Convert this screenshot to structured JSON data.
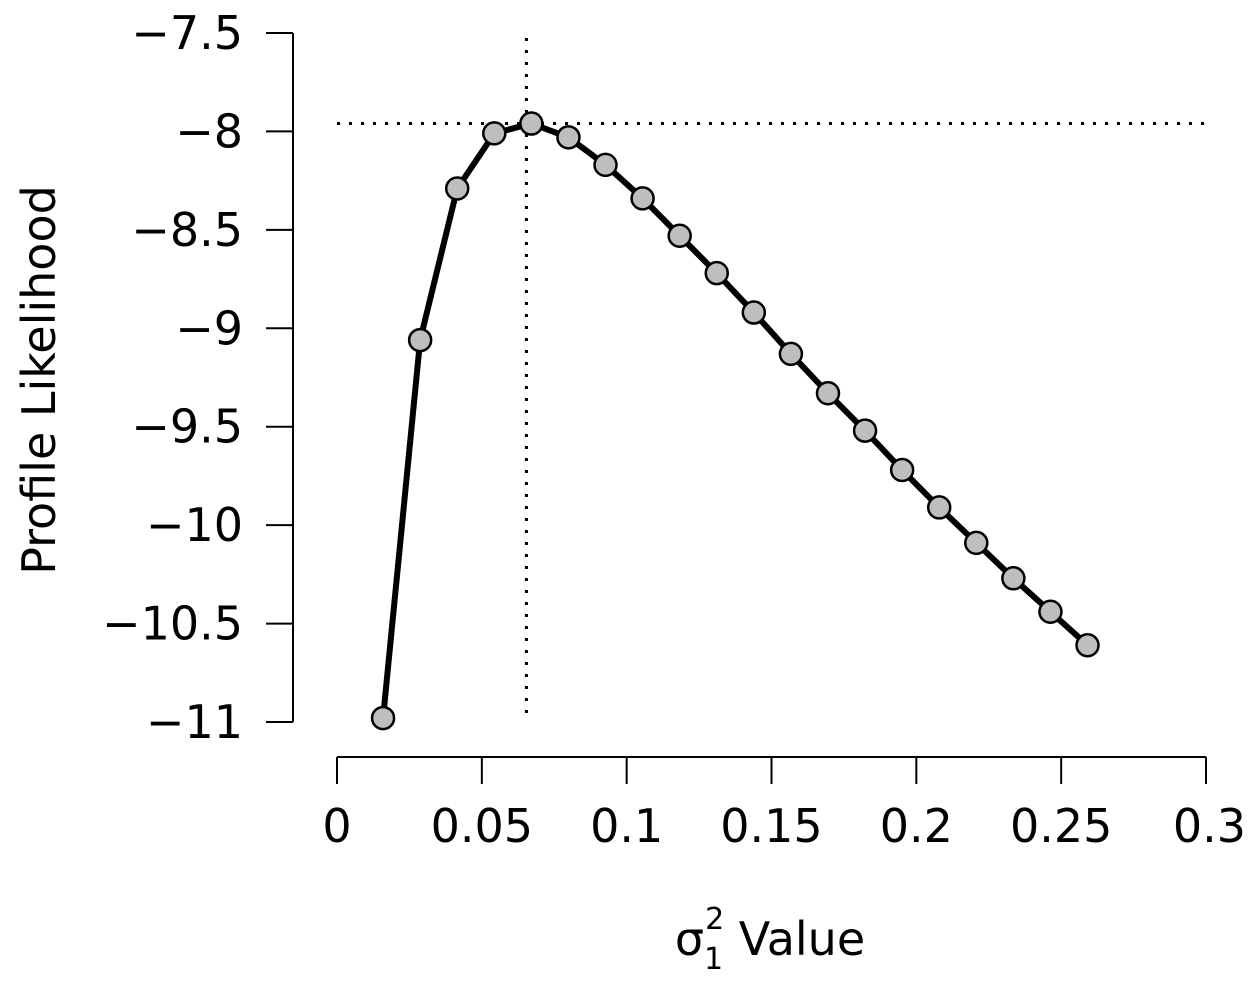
{
  "chart_data": {
    "type": "line",
    "xlabel": {
      "symbol": "σ",
      "subscript": "1",
      "superscript": "2",
      "text": " Value"
    },
    "ylabel": "Profile Likelihood",
    "xlim": [
      0,
      0.3
    ],
    "ylim": [
      -11,
      -7.5
    ],
    "xticks": [
      0,
      0.05,
      0.1,
      0.15,
      0.2,
      0.25,
      0.3
    ],
    "xtick_labels": [
      "0",
      "0.05",
      "0.1",
      "0.15",
      "0.2",
      "0.25",
      "0.3"
    ],
    "yticks": [
      -7.5,
      -8,
      -8.5,
      -9,
      -9.5,
      -10,
      -10.5,
      -11
    ],
    "ytick_labels": [
      "−7.5",
      "−8",
      "−8.5",
      "−9",
      "−9.5",
      "−10",
      "−10.5",
      "−11"
    ],
    "reference_lines": {
      "vertical_x": 0.0654,
      "horizontal_y": -7.96
    },
    "x": [
      0.0159,
      0.0287,
      0.0415,
      0.0543,
      0.0671,
      0.0799,
      0.0927,
      0.1055,
      0.1183,
      0.1311,
      0.1439,
      0.1567,
      0.1695,
      0.1823,
      0.1951,
      0.2079,
      0.2207,
      0.2335,
      0.2463,
      0.2591
    ],
    "y": [
      -10.98,
      -9.06,
      -8.29,
      -8.01,
      -7.96,
      -8.03,
      -8.17,
      -8.34,
      -8.53,
      -8.72,
      -8.92,
      -9.13,
      -9.33,
      -9.52,
      -9.72,
      -9.91,
      -10.09,
      -10.27,
      -10.44,
      -10.61
    ],
    "grid": false,
    "legend": "none",
    "colors": {
      "line": "#000000",
      "point_fill": "#bebebe",
      "point_stroke": "#000000"
    }
  }
}
